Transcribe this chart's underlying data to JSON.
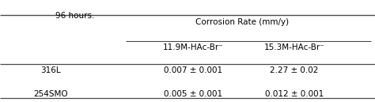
{
  "title_top": "96 hours.",
  "col_header_main": "Corrosion Rate (mm/y)",
  "col_header_sub1": "11.9M-HAc-Br⁻",
  "col_header_sub2": "15.3M-HAc-Br⁻",
  "row_labels": [
    "316L",
    "254SMO"
  ],
  "cell_values": [
    [
      "0.007 ± 0.001",
      "2.27 ± 0.02"
    ],
    [
      "0.005 ± 0.001",
      "0.012 ± 0.001"
    ]
  ],
  "bg_color": "#ffffff",
  "text_color": "#000000",
  "font_size": 7.5,
  "figsize": [
    4.74,
    1.29
  ],
  "dpi": 100,
  "line_color": "#4a4a4a",
  "line_lw": 0.8
}
